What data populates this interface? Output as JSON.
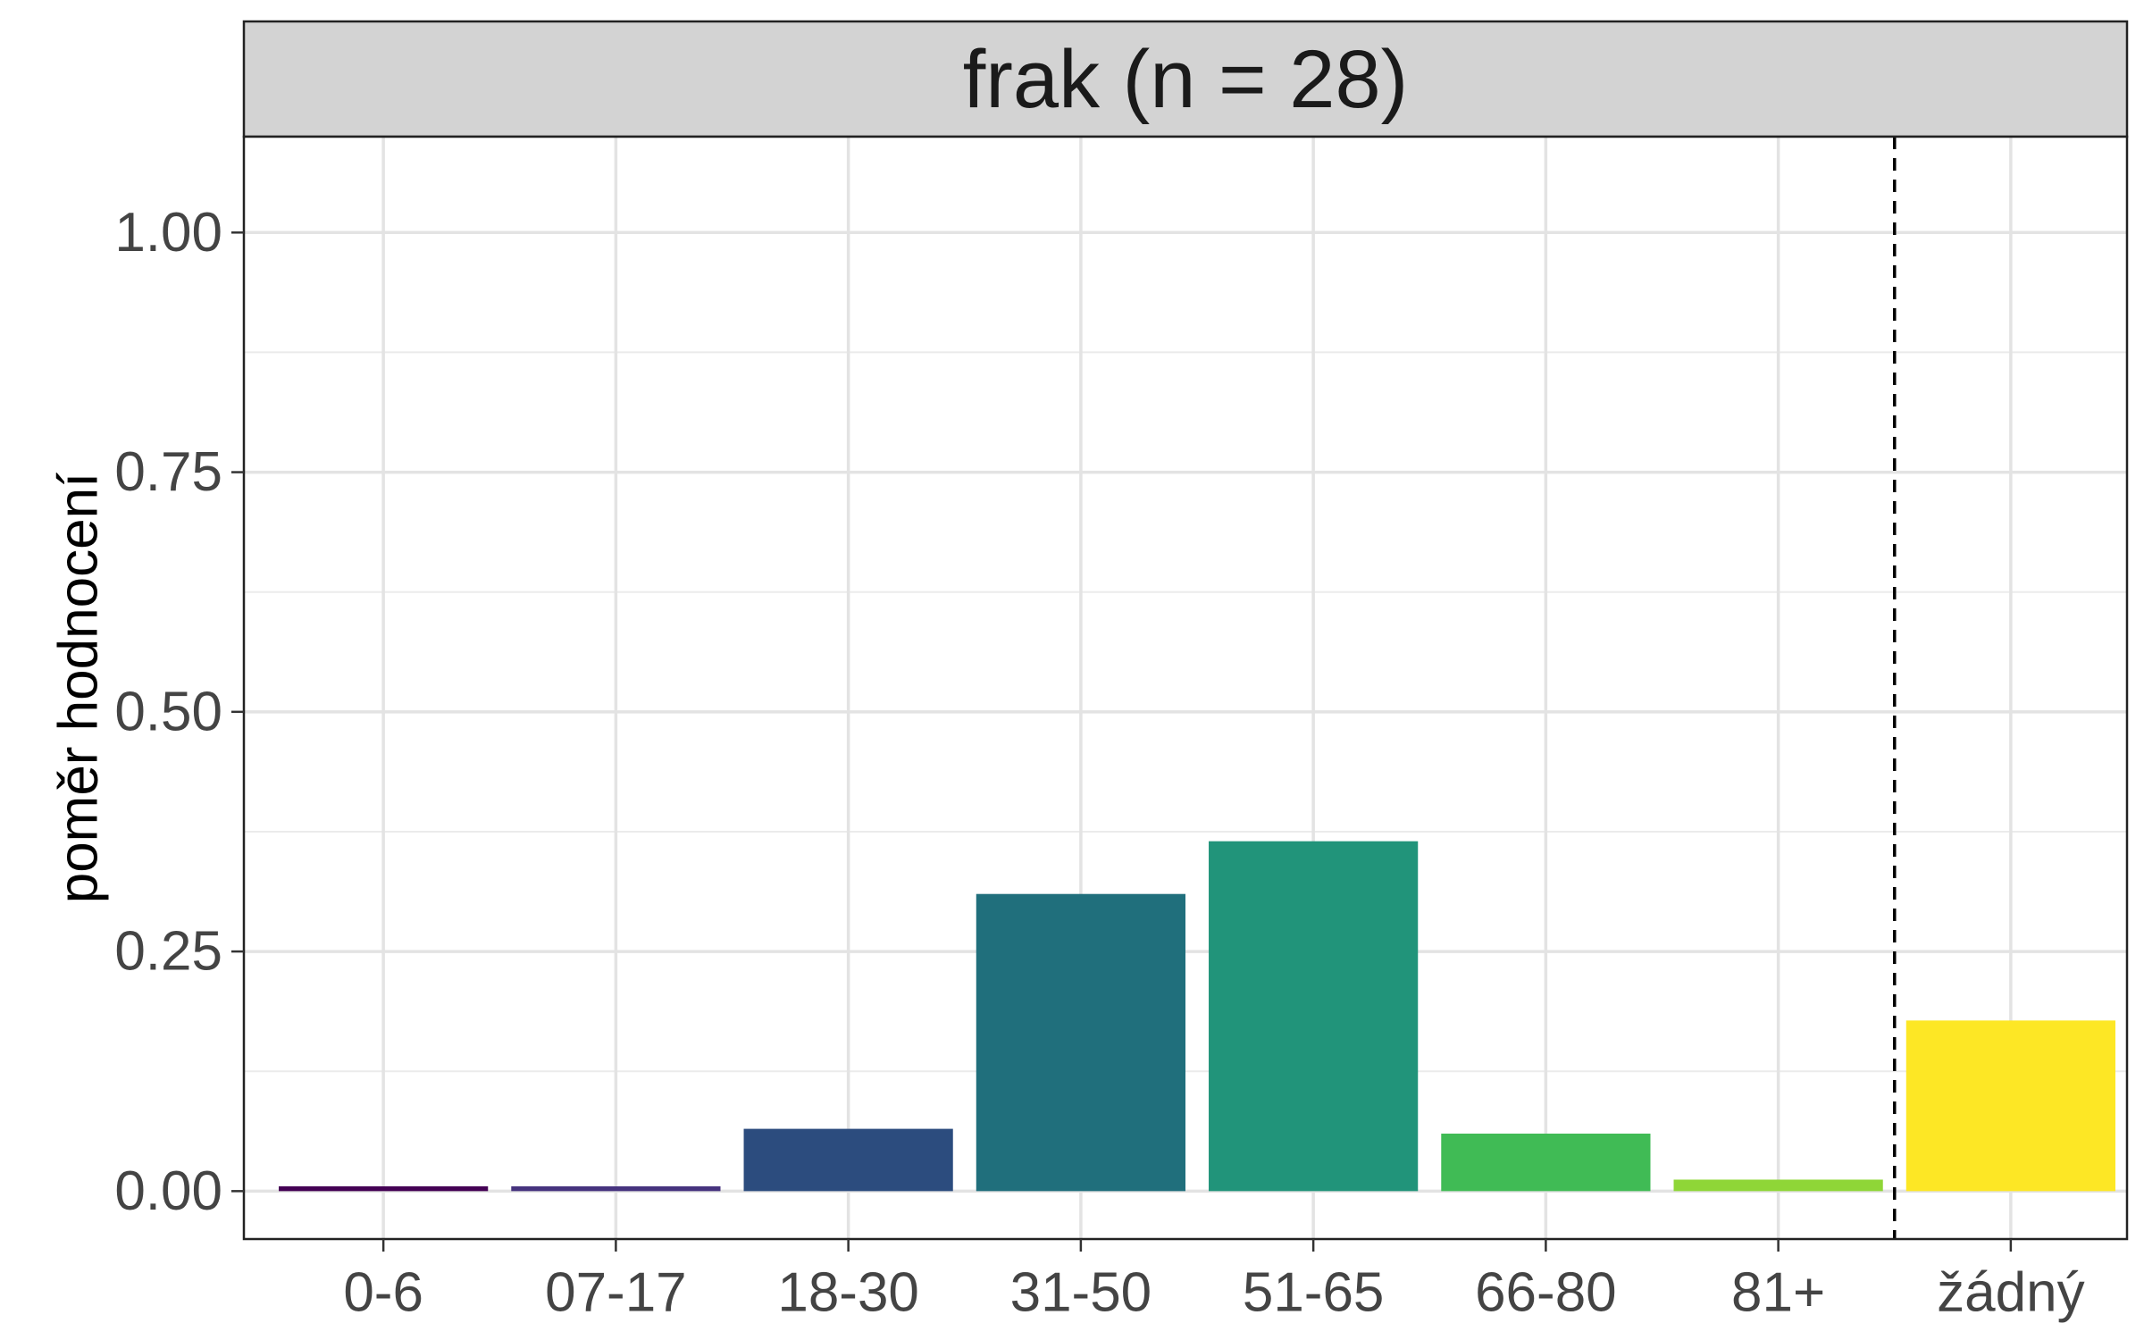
{
  "chart_data": {
    "type": "bar",
    "title": "frak (n = 28)",
    "xlabel": "",
    "ylabel": "poměr hodnocení",
    "categories": [
      "0-6",
      "07-17",
      "18-30",
      "31-50",
      "51-65",
      "66-80",
      "81+",
      "žádný"
    ],
    "values": [
      0.005,
      0.005,
      0.065,
      0.31,
      0.365,
      0.06,
      0.012,
      0.178
    ],
    "colors": [
      "#440154",
      "#46337E",
      "#2C4C7E",
      "#206F7C",
      "#21947A",
      "#40BB55",
      "#8FD637",
      "#FDE725"
    ],
    "ylim": [
      -0.05,
      1.1
    ],
    "yticks": [
      0,
      0.25,
      0.5,
      0.75,
      1.0
    ],
    "ytick_labels": [
      "0.00",
      "0.25",
      "0.50",
      "0.75",
      "1.00"
    ],
    "separator_after_category": "81+",
    "separator_style": "dashed",
    "grid": true
  }
}
